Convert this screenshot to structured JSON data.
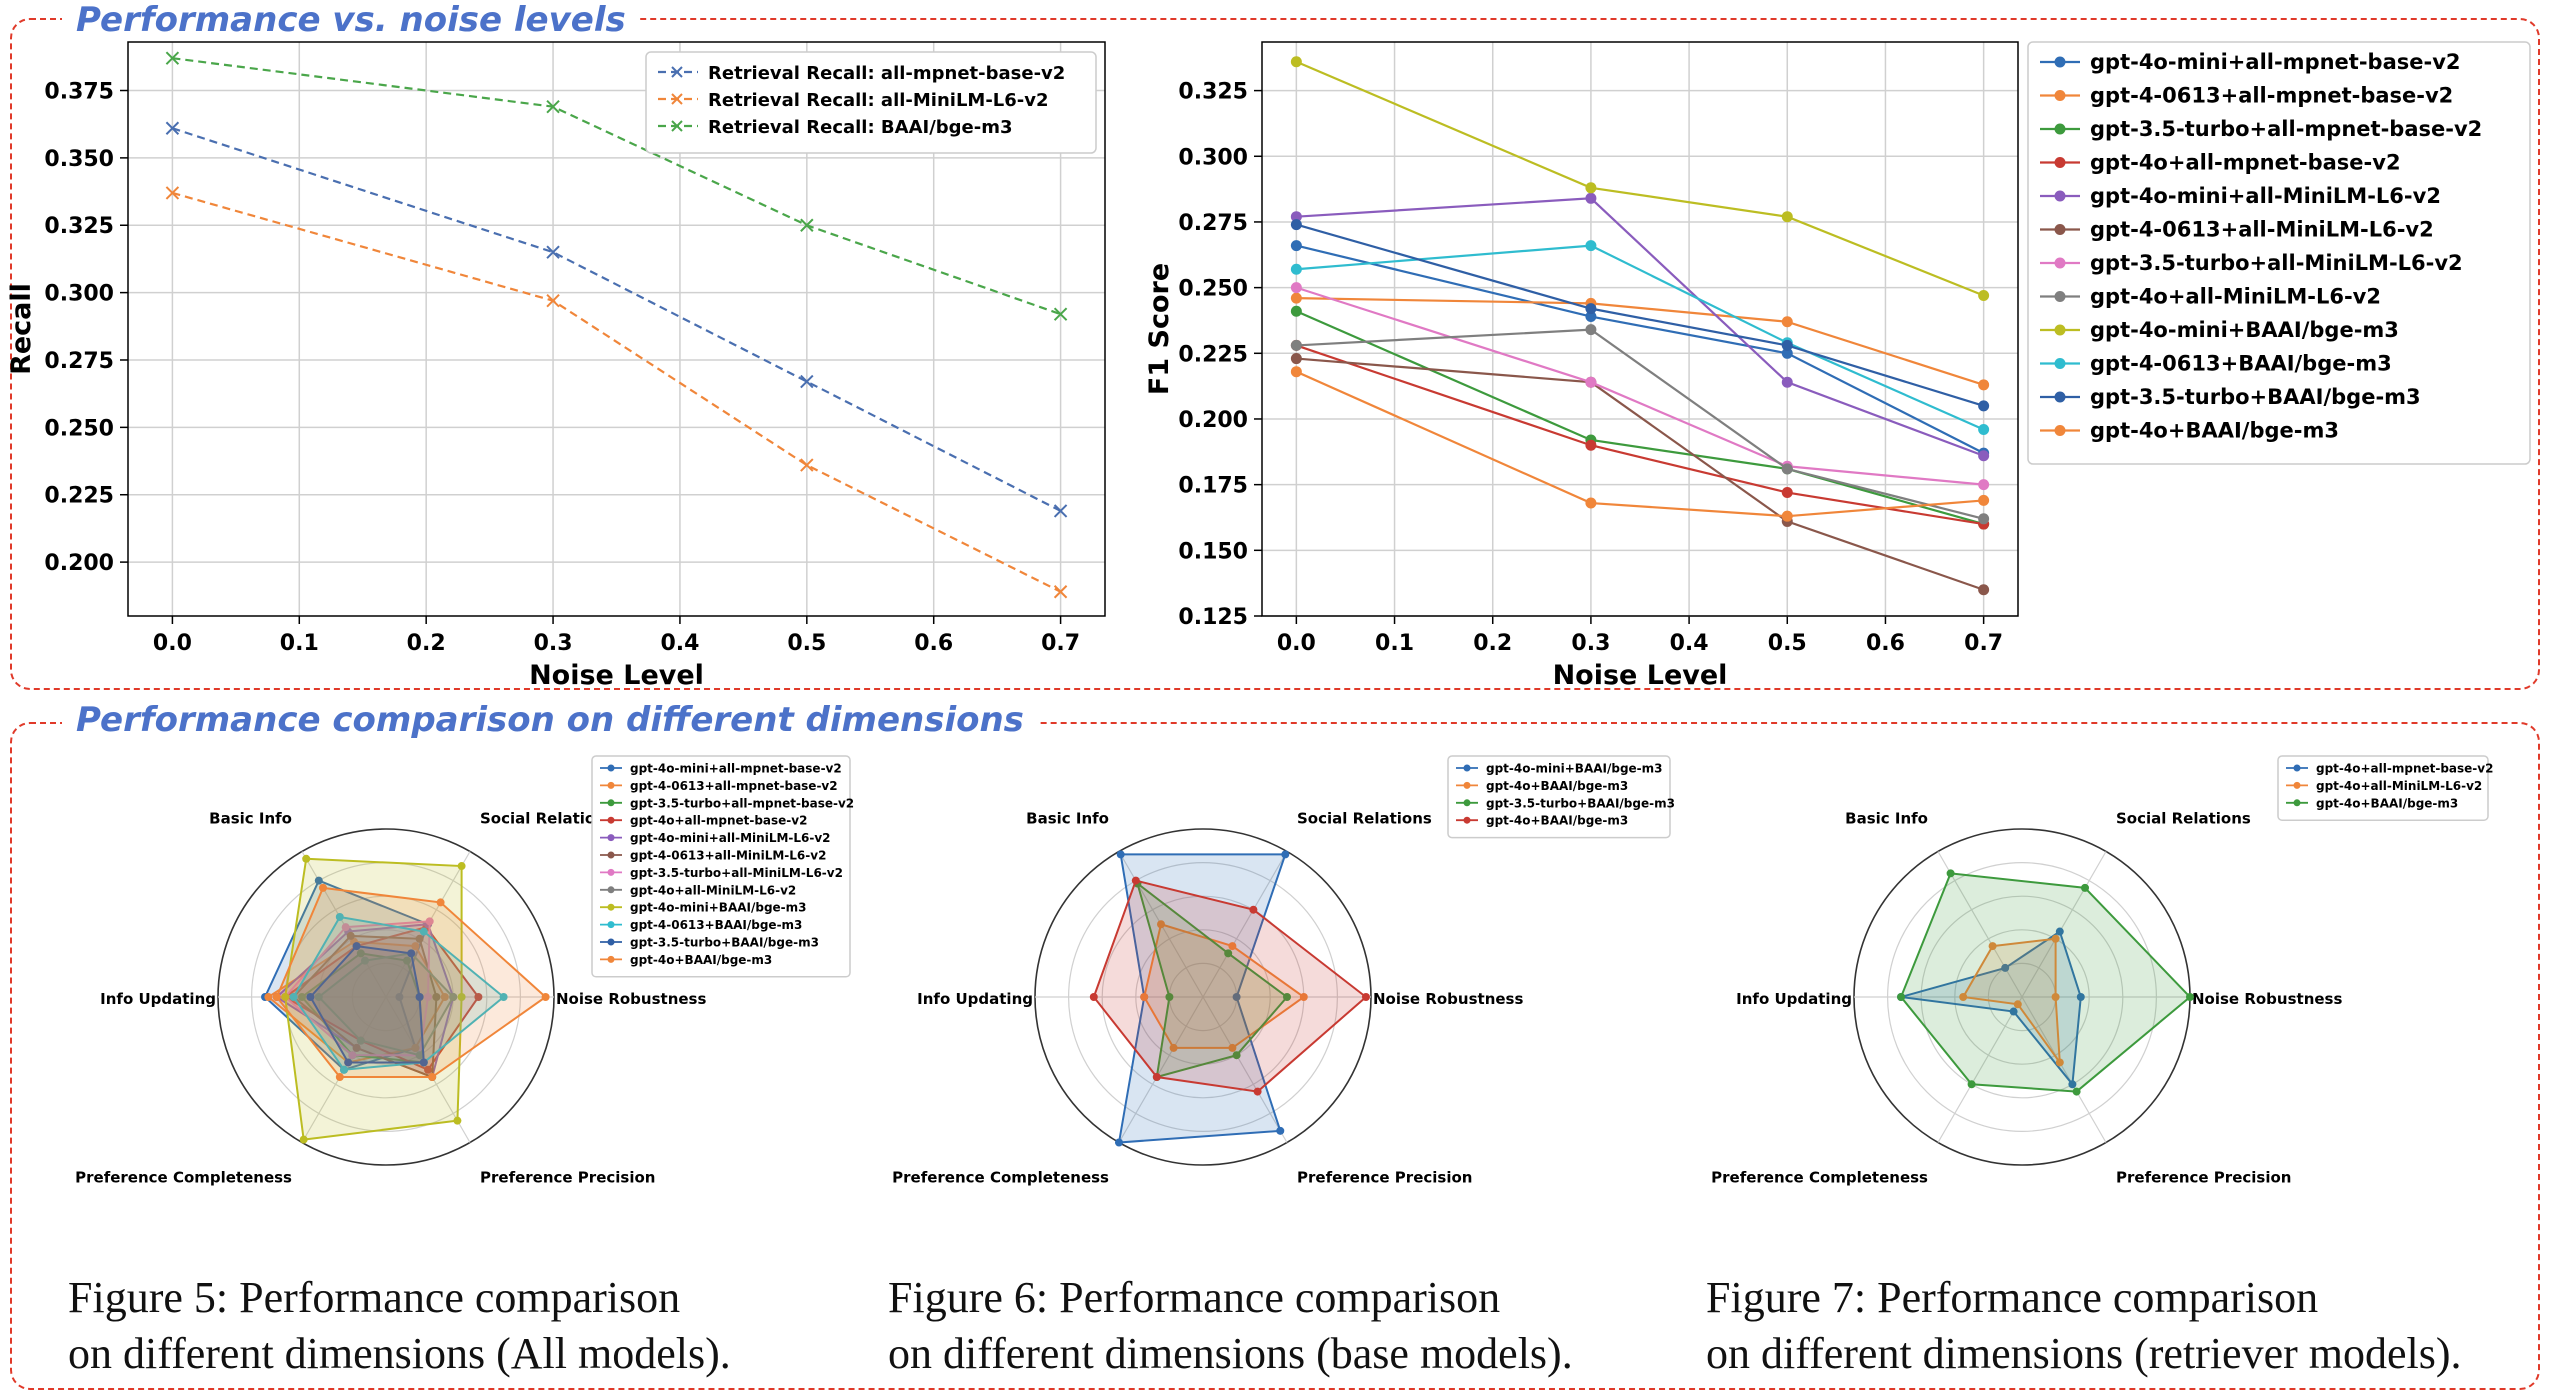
{
  "sections": {
    "top_title": "Performance vs. noise levels",
    "bottom_title": "Performance comparison on different dimensions"
  },
  "colors": {
    "frame": "#e03a2a",
    "title": "#4c72c9"
  },
  "captions": {
    "fig5": [
      "Figure 5: Performance comparison",
      "on different dimensions (All models)."
    ],
    "fig6": [
      "Figure 6: Performance comparison",
      "on different dimensions (base models)."
    ],
    "fig7": [
      "Figure 7: Performance comparison",
      "on different dimensions (retriever models)."
    ]
  },
  "chart_data": [
    {
      "type": "line",
      "xlabel": "Noise Level",
      "ylabel": "Recall",
      "x": [
        0.0,
        0.3,
        0.5,
        0.7
      ],
      "xticks": [
        "0.0",
        "0.1",
        "0.2",
        "0.3",
        "0.4",
        "0.5",
        "0.6",
        "0.7"
      ],
      "yticks": [
        "0.200",
        "0.225",
        "0.250",
        "0.275",
        "0.300",
        "0.325",
        "0.350",
        "0.375"
      ],
      "xlim": [
        -0.035,
        0.735
      ],
      "ylim": [
        0.18,
        0.393
      ],
      "grid": true,
      "legend_position": "top-right",
      "line_style": "dashed",
      "marker": "x",
      "series": [
        {
          "name": "Retrieval Recall: all-mpnet-base-v2",
          "color": "#4a6fb0",
          "values": [
            0.361,
            0.315,
            0.267,
            0.219
          ]
        },
        {
          "name": "Retrieval Recall: all-MiniLM-L6-v2",
          "color": "#f0863a",
          "values": [
            0.337,
            0.297,
            0.236,
            0.189
          ]
        },
        {
          "name": "Retrieval Recall: BAAI/bge-m3",
          "color": "#4aa64a",
          "values": [
            0.387,
            0.369,
            0.325,
            0.292
          ]
        }
      ]
    },
    {
      "type": "line",
      "xlabel": "Noise Level",
      "ylabel": "F1 Score",
      "x": [
        0.0,
        0.3,
        0.5,
        0.7
      ],
      "xticks": [
        "0.0",
        "0.1",
        "0.2",
        "0.3",
        "0.4",
        "0.5",
        "0.6",
        "0.7"
      ],
      "yticks": [
        "0.125",
        "0.150",
        "0.175",
        "0.200",
        "0.225",
        "0.250",
        "0.275",
        "0.300",
        "0.325"
      ],
      "xlim": [
        -0.035,
        0.735
      ],
      "ylim": [
        0.125,
        0.3435
      ],
      "grid": true,
      "legend_position": "outside-right",
      "line_style": "solid",
      "marker": "circle",
      "series": [
        {
          "name": "gpt-4o-mini+all-mpnet-base-v2",
          "color": "#2f6db5",
          "values": [
            0.266,
            0.239,
            0.225,
            0.187
          ]
        },
        {
          "name": "gpt-4-0613+all-mpnet-base-v2",
          "color": "#f0863a",
          "values": [
            0.246,
            0.244,
            0.237,
            0.213
          ]
        },
        {
          "name": "gpt-3.5-turbo+all-mpnet-base-v2",
          "color": "#3d9a3d",
          "values": [
            0.241,
            0.192,
            0.181,
            0.16
          ]
        },
        {
          "name": "gpt-4o+all-mpnet-base-v2",
          "color": "#c83a32",
          "values": [
            0.228,
            0.19,
            0.172,
            0.16
          ]
        },
        {
          "name": "gpt-4o-mini+all-MiniLM-L6-v2",
          "color": "#8a5cbd",
          "values": [
            0.277,
            0.284,
            0.214,
            0.186
          ]
        },
        {
          "name": "gpt-4-0613+all-MiniLM-L6-v2",
          "color": "#8a574b",
          "values": [
            0.223,
            0.214,
            0.161,
            0.135
          ]
        },
        {
          "name": "gpt-3.5-turbo+all-MiniLM-L6-v2",
          "color": "#e079c4",
          "values": [
            0.25,
            0.214,
            0.182,
            0.175
          ]
        },
        {
          "name": "gpt-4o+all-MiniLM-L6-v2",
          "color": "#7f7f7f",
          "values": [
            0.228,
            0.234,
            0.181,
            0.162
          ]
        },
        {
          "name": "gpt-4o-mini+BAAI/bge-m3",
          "color": "#bcbd22",
          "values": [
            0.336,
            0.288,
            0.277,
            0.247
          ]
        },
        {
          "name": "gpt-4-0613+BAAI/bge-m3",
          "color": "#2fbccf",
          "values": [
            0.257,
            0.266,
            0.229,
            0.196
          ]
        },
        {
          "name": "gpt-3.5-turbo+BAAI/bge-m3",
          "color": "#2f5fa5",
          "values": [
            0.274,
            0.242,
            0.228,
            0.205
          ]
        },
        {
          "name": "gpt-4o+BAAI/bge-m3",
          "color": "#f0863a",
          "values": [
            0.218,
            0.168,
            0.163,
            0.169
          ]
        }
      ]
    },
    {
      "type": "radar",
      "axes": [
        "Basic Info",
        "Social Relations",
        "Noise Robustness",
        "Preference Precision",
        "Preference Completeness",
        "Info Updating"
      ],
      "r_max": 1.0,
      "rings": 5,
      "grid": true,
      "legend_position": "top-right",
      "series": [
        {
          "name": "gpt-4o-mini+all-mpnet-base-v2",
          "color": "#2f6db5",
          "values": [
            0.8,
            0.5,
            0.08,
            0.35,
            0.5,
            0.72
          ]
        },
        {
          "name": "gpt-4-0613+all-mpnet-base-v2",
          "color": "#f0863a",
          "values": [
            0.38,
            0.35,
            0.35,
            0.35,
            0.45,
            0.7
          ]
        },
        {
          "name": "gpt-3.5-turbo+all-mpnet-base-v2",
          "color": "#3d9a3d",
          "values": [
            0.3,
            0.25,
            0.2,
            0.45,
            0.4,
            0.5
          ]
        },
        {
          "name": "gpt-4o+all-mpnet-base-v2",
          "color": "#c83a32",
          "values": [
            0.35,
            0.48,
            0.55,
            0.5,
            0.3,
            0.6
          ]
        },
        {
          "name": "gpt-4o-mini+all-MiniLM-L6-v2",
          "color": "#8a5cbd",
          "values": [
            0.45,
            0.5,
            0.4,
            0.55,
            0.35,
            0.65
          ]
        },
        {
          "name": "gpt-4-0613+all-MiniLM-L6-v2",
          "color": "#8a574b",
          "values": [
            0.42,
            0.4,
            0.3,
            0.55,
            0.35,
            0.55
          ]
        },
        {
          "name": "gpt-3.5-turbo+all-MiniLM-L6-v2",
          "color": "#e079c4",
          "values": [
            0.48,
            0.52,
            0.25,
            0.4,
            0.4,
            0.6
          ]
        },
        {
          "name": "gpt-4o+all-MiniLM-L6-v2",
          "color": "#7f7f7f",
          "values": [
            0.25,
            0.3,
            0.4,
            0.4,
            0.3,
            0.4
          ]
        },
        {
          "name": "gpt-4o-mini+BAAI/bge-m3",
          "color": "#bcbd22",
          "values": [
            0.95,
            0.9,
            0.45,
            0.85,
            0.98,
            0.6
          ]
        },
        {
          "name": "gpt-4-0613+BAAI/bge-m3",
          "color": "#2fbccf",
          "values": [
            0.55,
            0.45,
            0.7,
            0.45,
            0.5,
            0.55
          ]
        },
        {
          "name": "gpt-3.5-turbo+BAAI/bge-m3",
          "color": "#2f5fa5",
          "values": [
            0.35,
            0.3,
            0.2,
            0.45,
            0.45,
            0.45
          ]
        },
        {
          "name": "gpt-4o+BAAI/bge-m3",
          "color": "#f0863a",
          "values": [
            0.75,
            0.65,
            0.95,
            0.55,
            0.55,
            0.65
          ]
        }
      ]
    },
    {
      "type": "radar",
      "axes": [
        "Basic Info",
        "Social Relations",
        "Noise Robustness",
        "Preference Precision",
        "Preference Completeness",
        "Info Updating"
      ],
      "r_max": 1.0,
      "rings": 5,
      "grid": true,
      "legend_position": "top-right",
      "series": [
        {
          "name": "gpt-4o-mini+BAAI/bge-m3",
          "color": "#2f6db5",
          "values": [
            0.98,
            0.98,
            0.2,
            0.92,
            1.0,
            0.35
          ]
        },
        {
          "name": "gpt-4o+BAAI/bge-m3",
          "color": "#f0863a",
          "values": [
            0.5,
            0.35,
            0.6,
            0.35,
            0.35,
            0.35
          ]
        },
        {
          "name": "gpt-3.5-turbo+BAAI/bge-m3",
          "color": "#3d9a3d",
          "values": [
            0.78,
            0.3,
            0.5,
            0.4,
            0.55,
            0.2
          ]
        },
        {
          "name": "gpt-4o+BAAI/bge-m3",
          "color": "#c83a32",
          "values": [
            0.8,
            0.6,
            0.97,
            0.65,
            0.55,
            0.65
          ]
        }
      ]
    },
    {
      "type": "radar",
      "axes": [
        "Basic Info",
        "Social Relations",
        "Noise Robustness",
        "Preference Precision",
        "Preference Completeness",
        "Info Updating"
      ],
      "r_max": 1.0,
      "rings": 5,
      "grid": true,
      "legend_position": "top-right",
      "series": [
        {
          "name": "gpt-4o+all-mpnet-base-v2",
          "color": "#2f6db5",
          "values": [
            0.2,
            0.45,
            0.35,
            0.6,
            0.1,
            0.72
          ]
        },
        {
          "name": "gpt-4o+all-MiniLM-L6-v2",
          "color": "#f0863a",
          "values": [
            0.35,
            0.4,
            0.2,
            0.45,
            0.05,
            0.35
          ]
        },
        {
          "name": "gpt-4o+BAAI/bge-m3",
          "color": "#3d9a3d",
          "values": [
            0.85,
            0.75,
            1.0,
            0.65,
            0.6,
            0.72
          ]
        }
      ]
    }
  ]
}
